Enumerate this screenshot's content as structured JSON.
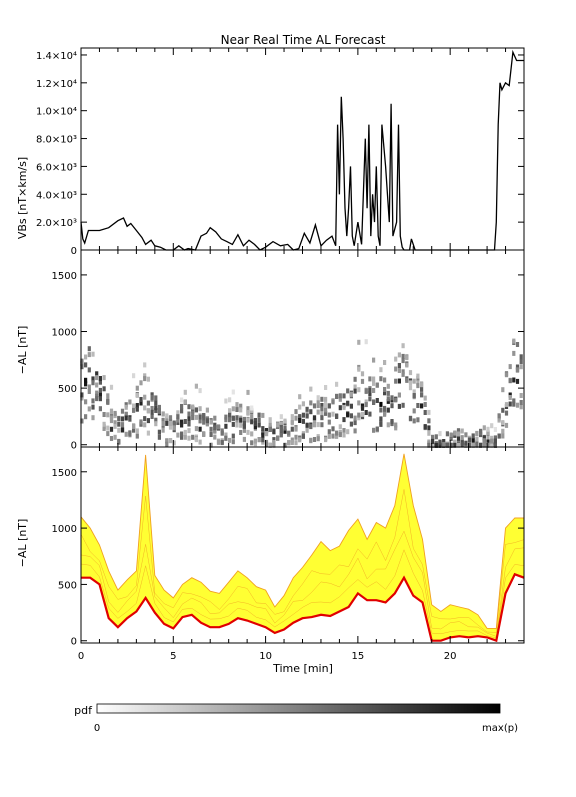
{
  "chart_data": [
    {
      "type": "line",
      "title": "Near Real Time AL Forecast",
      "ylabel": "VBs [nT×km/s]",
      "ylim": [
        0,
        14500
      ],
      "yticks": [
        0,
        2000,
        4000,
        6000,
        8000,
        10000,
        12000,
        14000
      ],
      "ytick_labels": [
        "0",
        "2.0×10³",
        "4.0×10³",
        "6.0×10³",
        "8.0×10³",
        "1.0×10⁴",
        "1.2×10⁴",
        "1.4×10⁴"
      ],
      "xlim": [
        0,
        24
      ],
      "x": [
        0,
        0.1,
        0.2,
        0.4,
        0.6,
        1.0,
        1.5,
        2.0,
        2.3,
        2.5,
        2.7,
        3.0,
        3.3,
        3.5,
        3.8,
        4.0,
        4.3,
        4.6,
        5.0,
        5.3,
        5.6,
        5.8,
        6.2,
        6.5,
        6.8,
        7.0,
        7.3,
        7.6,
        7.9,
        8.2,
        8.5,
        8.8,
        9.1,
        9.4,
        9.7,
        10.0,
        10.4,
        10.8,
        11.2,
        11.5,
        11.8,
        12.1,
        12.4,
        12.7,
        13.0,
        13.3,
        13.6,
        13.8,
        13.9,
        14.0,
        14.1,
        14.2,
        14.3,
        14.4,
        14.5,
        14.6,
        14.7,
        14.8,
        15.0,
        15.2,
        15.4,
        15.5,
        15.6,
        15.7,
        15.8,
        15.9,
        16.0,
        16.1,
        16.2,
        16.3,
        16.5,
        16.7,
        16.8,
        16.9,
        17.1,
        17.2,
        17.3,
        17.4,
        17.5,
        17.6,
        17.7,
        17.8,
        17.9,
        18.1,
        18.5,
        19.0,
        19.5,
        20.0,
        20.5,
        21.0,
        21.5,
        22.0,
        22.4,
        22.5,
        22.6,
        22.7,
        22.8,
        23.0,
        23.2,
        23.4,
        23.6,
        23.8,
        24.0
      ],
      "values": [
        2000,
        800,
        500,
        1400,
        1400,
        1400,
        1600,
        2100,
        2300,
        1700,
        1900,
        1400,
        900,
        400,
        700,
        300,
        200,
        0,
        0,
        300,
        0,
        100,
        0,
        1000,
        1200,
        1600,
        1300,
        800,
        600,
        400,
        1100,
        300,
        700,
        400,
        0,
        200,
        600,
        300,
        400,
        0,
        100,
        1200,
        500,
        1800,
        300,
        700,
        1000,
        300,
        9000,
        4000,
        11000,
        8000,
        3000,
        1000,
        3000,
        6000,
        1000,
        300,
        2000,
        400,
        8000,
        3000,
        9000,
        1000,
        4000,
        2000,
        6000,
        1000,
        300,
        9000,
        6000,
        2000,
        10500,
        1000,
        2000,
        9000,
        1000,
        200,
        0,
        0,
        0,
        0,
        800,
        0,
        0,
        0,
        0,
        0,
        0,
        0,
        0,
        0,
        0,
        2000,
        9000,
        12000,
        11500,
        12000,
        11800,
        14200,
        13600,
        13600,
        13600
      ]
    },
    {
      "type": "heatmap",
      "ylabel": "−AL [nT]",
      "ylim": [
        -20,
        1720
      ],
      "yticks": [
        0,
        500,
        1000,
        1500
      ],
      "xlim": [
        0,
        24
      ],
      "xticks": [
        0,
        5,
        10,
        15,
        20
      ],
      "median_x": [
        0,
        0.5,
        1,
        1.5,
        2,
        2.5,
        3,
        3.5,
        4,
        4.5,
        5,
        5.5,
        6,
        6.5,
        7,
        7.5,
        8,
        8.5,
        9,
        9.5,
        10,
        10.5,
        11,
        11.5,
        12,
        12.5,
        13,
        13.5,
        14,
        14.5,
        15,
        15.5,
        16,
        16.5,
        17,
        17.5,
        18,
        18.5,
        19,
        19.5,
        20,
        20.5,
        21,
        21.5,
        22,
        22.5,
        23,
        23.5,
        24
      ],
      "median_y": [
        560,
        560,
        500,
        200,
        120,
        200,
        260,
        380,
        250,
        150,
        110,
        210,
        230,
        160,
        120,
        120,
        150,
        200,
        180,
        150,
        120,
        70,
        100,
        160,
        200,
        210,
        230,
        220,
        260,
        300,
        420,
        360,
        360,
        340,
        420,
        560,
        400,
        340,
        0,
        0,
        30,
        40,
        30,
        40,
        30,
        0,
        420,
        590,
        560
      ],
      "colorbar": {
        "label": "pdf",
        "min_label": "0",
        "max_label": "max(p)"
      }
    },
    {
      "type": "area",
      "ylabel": "−AL [nT]",
      "ylim": [
        -20,
        1720
      ],
      "yticks": [
        0,
        500,
        1000,
        1500
      ],
      "xlim": [
        0,
        24
      ],
      "xticks": [
        0,
        5,
        10,
        15,
        20
      ],
      "xlabel": "Time [min]",
      "x": [
        0,
        0.5,
        1,
        1.5,
        2,
        2.5,
        3,
        3.5,
        4,
        4.5,
        5,
        5.5,
        6,
        6.5,
        7,
        7.5,
        8,
        8.5,
        9,
        9.5,
        10,
        10.5,
        11,
        11.5,
        12,
        12.5,
        13,
        13.5,
        14,
        14.5,
        15,
        15.5,
        16,
        16.5,
        17,
        17.5,
        18,
        18.5,
        19,
        19.5,
        20,
        20.5,
        21,
        21.5,
        22,
        22.5,
        23,
        23.5,
        24
      ],
      "series": [
        {
          "values": [
            560,
            560,
            500,
            200,
            120,
            200,
            260,
            380,
            250,
            150,
            110,
            210,
            230,
            160,
            120,
            120,
            150,
            200,
            180,
            150,
            120,
            70,
            100,
            160,
            200,
            210,
            230,
            220,
            260,
            300,
            420,
            360,
            360,
            340,
            420,
            560,
            400,
            340,
            0,
            0,
            30,
            40,
            30,
            40,
            30,
            0,
            420,
            590,
            560
          ]
        },
        {
          "values": [
            1100,
            1000,
            850,
            620,
            450,
            540,
            620,
            1650,
            580,
            450,
            380,
            500,
            560,
            520,
            440,
            420,
            520,
            620,
            560,
            480,
            450,
            300,
            400,
            560,
            650,
            760,
            880,
            800,
            840,
            980,
            1080,
            900,
            1050,
            1000,
            1200,
            1660,
            1200,
            900,
            320,
            260,
            320,
            300,
            280,
            230,
            110,
            110,
            1000,
            1090,
            1090
          ]
        }
      ]
    }
  ],
  "colors": {
    "median": "#e00000",
    "band": "#ffff33",
    "band_edge": "#f0a020",
    "axis": "#000000"
  }
}
